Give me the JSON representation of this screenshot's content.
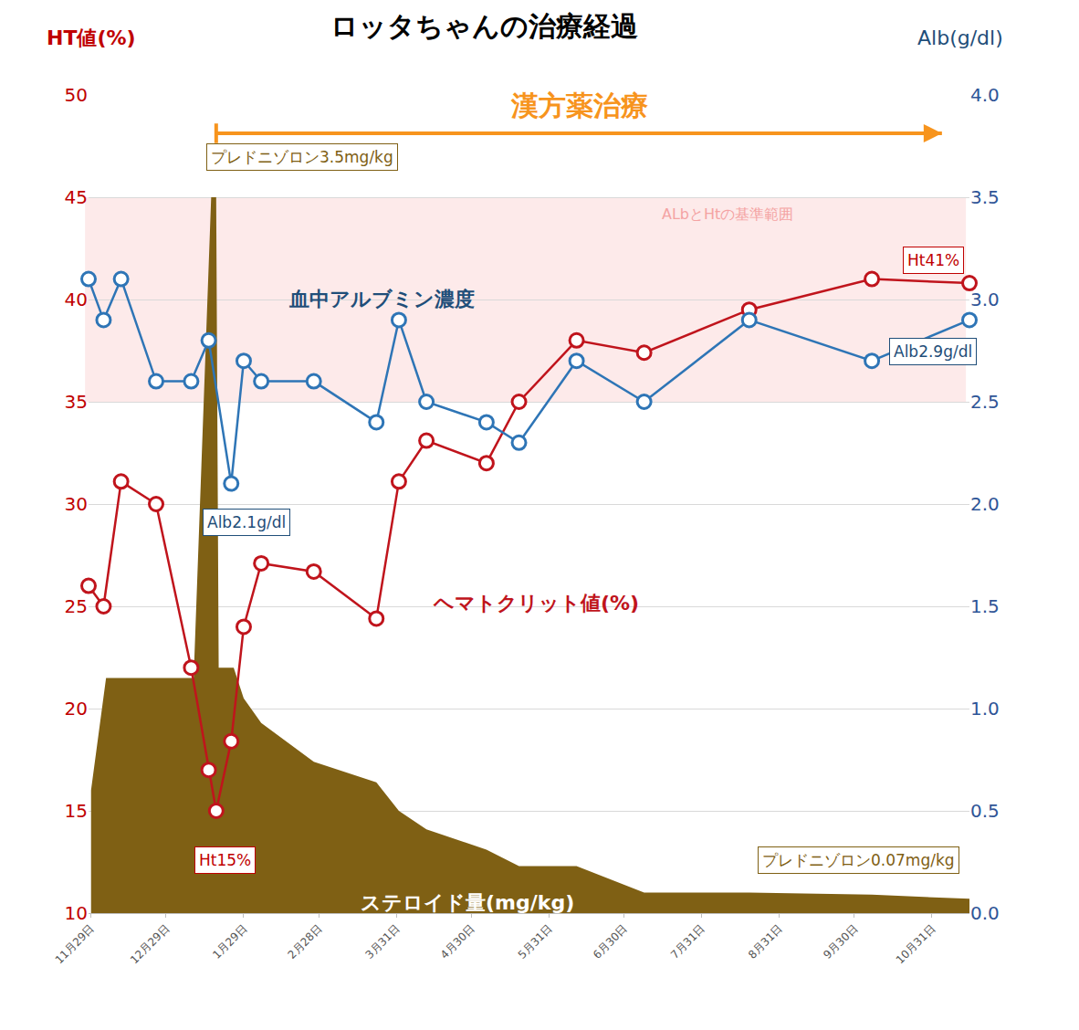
{
  "chart_data": {
    "type": "line",
    "title": "ロッタちゃんの治療経過",
    "y_label": "HT値(%)",
    "y2_label": "Alb(g/dl)",
    "xlim": [
      -1,
      351
    ],
    "xticks": [
      {
        "value": 0,
        "label": "11月29日"
      },
      {
        "value": 30,
        "label": "12月29日"
      },
      {
        "value": 61,
        "label": "1月29日"
      },
      {
        "value": 91,
        "label": "2月28日"
      },
      {
        "value": 122,
        "label": "3月31日"
      },
      {
        "value": 152,
        "label": "4月30日"
      },
      {
        "value": 183,
        "label": "5月31日"
      },
      {
        "value": 213,
        "label": "6月30日"
      },
      {
        "value": 244,
        "label": "7月31日"
      },
      {
        "value": 275,
        "label": "8月31日"
      },
      {
        "value": 305,
        "label": "9月30日"
      },
      {
        "value": 336,
        "label": "10月31日"
      }
    ],
    "ylim": [
      10,
      50
    ],
    "yticks": [
      10,
      15,
      20,
      25,
      30,
      35,
      40,
      45,
      50
    ],
    "y2lim": [
      0,
      4
    ],
    "y2ticks": [
      {
        "value": 0,
        "label": "0.0"
      },
      0.5,
      {
        "value": 1,
        "label": "1.0"
      },
      1.5,
      {
        "value": 2,
        "label": "2.0"
      },
      2.5,
      {
        "value": 3,
        "label": "3.0"
      },
      3.5,
      {
        "value": 4,
        "label": "4.0"
      }
    ],
    "grid": true,
    "series": [
      {
        "name": "ステロイド量(mg/kg)",
        "type": "area",
        "axis": "y2",
        "color": "#7f6014",
        "x": [
          0,
          6,
          41,
          48,
          50,
          51,
          57,
          61,
          68,
          89,
          114,
          123,
          134,
          158,
          171,
          194,
          221,
          263,
          312,
          351
        ],
        "values": [
          0.6,
          1.15,
          1.15,
          3.5,
          3.5,
          1.2,
          1.2,
          1.05,
          0.93,
          0.74,
          0.64,
          0.5,
          0.41,
          0.31,
          0.23,
          0.23,
          0.1,
          0.1,
          0.09,
          0.07
        ]
      },
      {
        "name": "ヘマトクリット値(%)",
        "type": "line",
        "axis": "y",
        "color": "#c0141c",
        "marker": "circle",
        "x": [
          -1,
          5,
          12,
          26,
          40,
          47,
          50,
          56,
          61,
          68,
          89,
          114,
          123,
          134,
          158,
          171,
          194,
          221,
          263,
          312,
          351
        ],
        "values": [
          26.0,
          25.0,
          31.1,
          30.0,
          22.0,
          17.0,
          15.0,
          18.4,
          24.0,
          27.1,
          26.7,
          24.4,
          31.1,
          33.1,
          32.0,
          35.0,
          38.0,
          37.4,
          39.5,
          41.0,
          40.8
        ]
      },
      {
        "name": "血中アルブミン濃度",
        "type": "line",
        "axis": "y2",
        "color": "#2e75b6",
        "marker": "circle",
        "x": [
          -1,
          5,
          12,
          26,
          40,
          47,
          56,
          61,
          68,
          89,
          114,
          123,
          134,
          158,
          171,
          194,
          221,
          263,
          312,
          351
        ],
        "values": [
          3.1,
          2.9,
          3.1,
          2.6,
          2.6,
          2.8,
          2.1,
          2.7,
          2.6,
          2.6,
          2.4,
          2.9,
          2.5,
          2.4,
          2.3,
          2.7,
          2.5,
          2.9,
          2.7,
          2.9
        ]
      }
    ],
    "reference_range": {
      "label": "ALbとHtの基準範囲",
      "y": [
        35,
        45
      ]
    },
    "treatment": {
      "label": "漢方薬治療",
      "x": [
        50,
        340
      ]
    },
    "annotations": [
      "プレドニゾロン3.5mg/kg",
      "Alb2.1g/dl",
      "Ht15%",
      "プレドニゾロン0.07mg/kg",
      "Alb2.9g/dl",
      "Ht41%"
    ]
  }
}
